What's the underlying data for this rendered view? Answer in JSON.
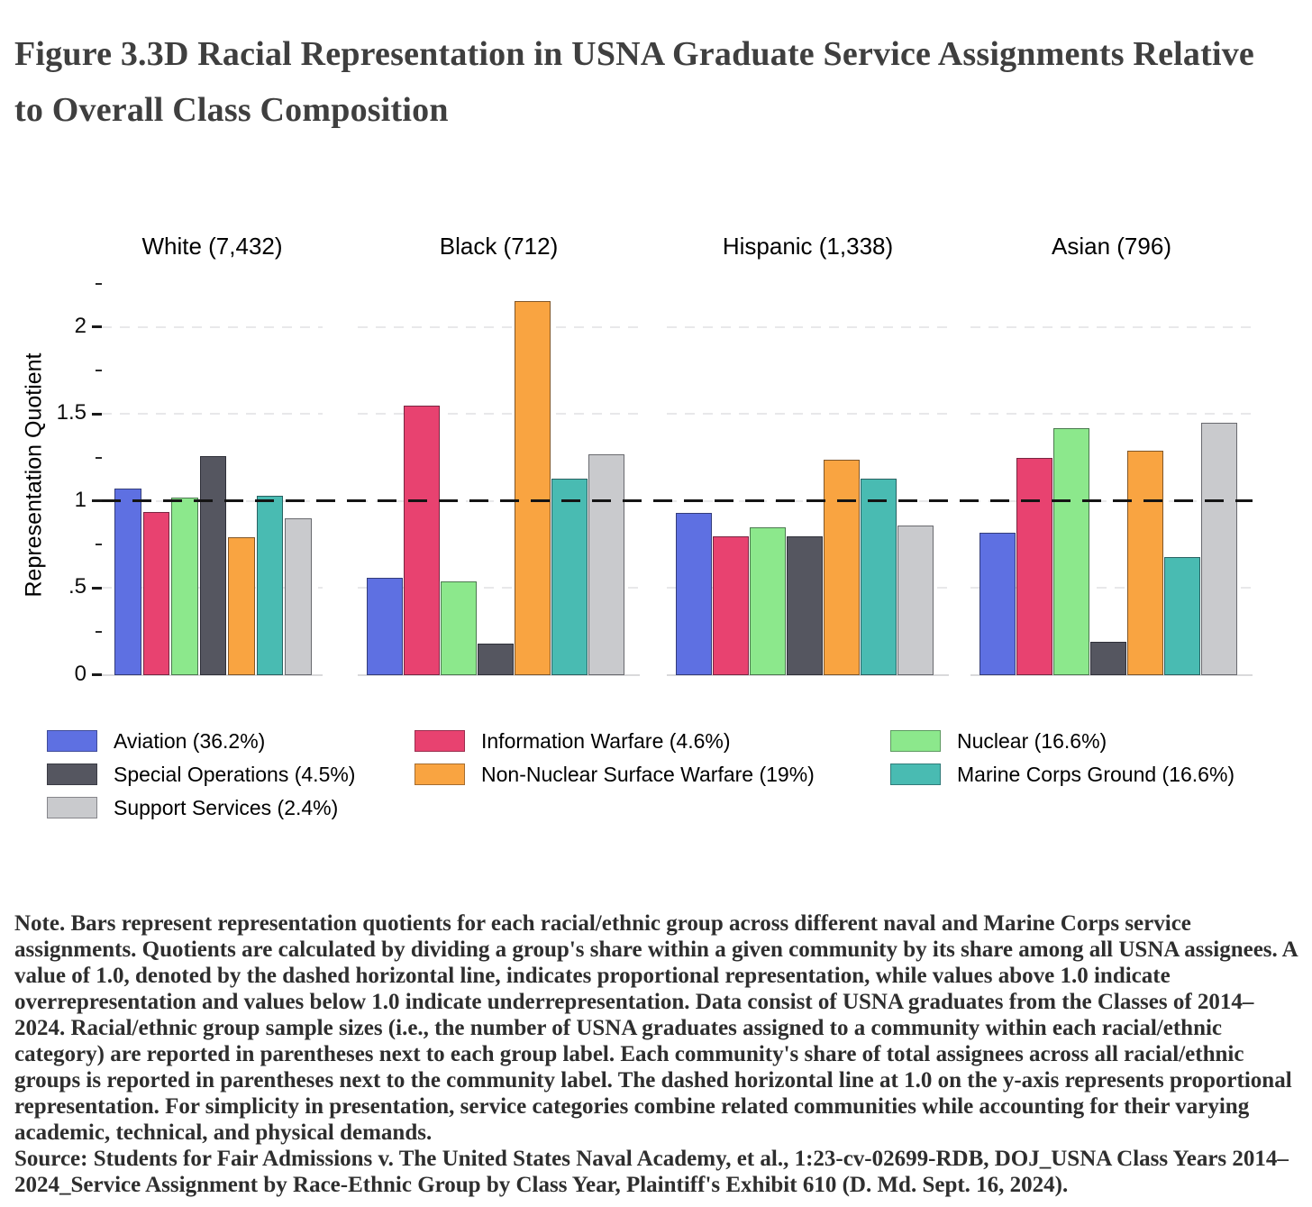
{
  "figure": {
    "title_lines": [
      "Figure 3.3D Racial Representation in USNA Graduate Service Assignments Relative",
      "to Overall Class Composition"
    ]
  },
  "chart_data": {
    "type": "bar",
    "title": "Figure 3.3D Racial Representation in USNA Graduate Service Assignments Relative to Overall Class Composition",
    "ylabel": "Representation Quotient",
    "ylim": [
      0,
      2.3
    ],
    "grid": true,
    "legend_position": "bottom",
    "reference_line": 1.0,
    "ytick_majors": [
      {
        "value": 0,
        "label": "0"
      },
      {
        "value": 0.5,
        "label": ".5"
      },
      {
        "value": 1,
        "label": "1"
      },
      {
        "value": 1.5,
        "label": "1.5"
      },
      {
        "value": 2,
        "label": "2"
      }
    ],
    "ytick_minors": [
      0.25,
      0.75,
      1.25,
      1.75,
      2.25
    ],
    "gridline_values": [
      0.5,
      1,
      1.5,
      2
    ],
    "series": [
      {
        "id": "aviation",
        "label": "Aviation (36.2%)",
        "color": "#5e70e2"
      },
      {
        "id": "information-warfare",
        "label": "Information Warfare (4.6%)",
        "color": "#e84270"
      },
      {
        "id": "nuclear",
        "label": "Nuclear (16.6%)",
        "color": "#8ce88c"
      },
      {
        "id": "special-operations",
        "label": "Special Operations (4.5%)",
        "color": "#555660"
      },
      {
        "id": "non-nuclear-surface-warfare",
        "label": "Non-Nuclear Surface Warfare (19%)",
        "color": "#f9a441"
      },
      {
        "id": "marine-corps-ground",
        "label": "Marine Corps Ground (16.6%)",
        "color": "#49bbb2"
      },
      {
        "id": "support-services",
        "label": "Support Services (2.4%)",
        "color": "#c9cacd"
      }
    ],
    "panels": [
      {
        "id": "white",
        "label": "White (7,432)",
        "values": [
          1.07,
          0.94,
          1.02,
          1.26,
          0.79,
          1.03,
          0.9
        ]
      },
      {
        "id": "black",
        "label": "Black (712)",
        "values": [
          0.56,
          1.55,
          0.54,
          0.18,
          2.15,
          1.13,
          1.27
        ]
      },
      {
        "id": "hispanic",
        "label": "Hispanic (1,338)",
        "values": [
          0.93,
          0.8,
          0.85,
          0.8,
          1.24,
          1.13,
          0.86
        ]
      },
      {
        "id": "asian",
        "label": "Asian (796)",
        "values": [
          0.82,
          1.25,
          1.42,
          0.19,
          1.29,
          0.68,
          1.45
        ]
      }
    ]
  },
  "note": {
    "text": "Note. Bars represent representation quotients for each racial/ethnic group across different naval and Marine Corps service assignments. Quotients are calculated by dividing a group's share within a given community by its share among all USNA assignees. A value of 1.0, denoted by the dashed horizontal line, indicates proportional representation, while values above 1.0 indicate overrepresentation and values below 1.0 indicate underrepresentation. Data consist of USNA graduates from the Classes of 2014–2024. Racial/ethnic group sample sizes (i.e., the number of USNA graduates assigned to a community within each racial/ethnic category) are reported in parentheses next to each group label. Each community's share of total assignees across all racial/ethnic groups is reported in parentheses next to the community label. The dashed horizontal line at 1.0 on the y-axis represents proportional representation. For simplicity in presentation, service categories combine related communities while accounting for their varying academic, technical, and physical demands."
  },
  "source": {
    "text": "Source: Students for Fair Admissions v. The United States Naval Academy, et al., 1:23-cv-02699-RDB, DOJ_USNA Class Years 2014–2024_Service Assignment by Race-Ethnic Group by Class Year, Plaintiff's Exhibit 610 (D. Md. Sept. 16, 2024)."
  }
}
